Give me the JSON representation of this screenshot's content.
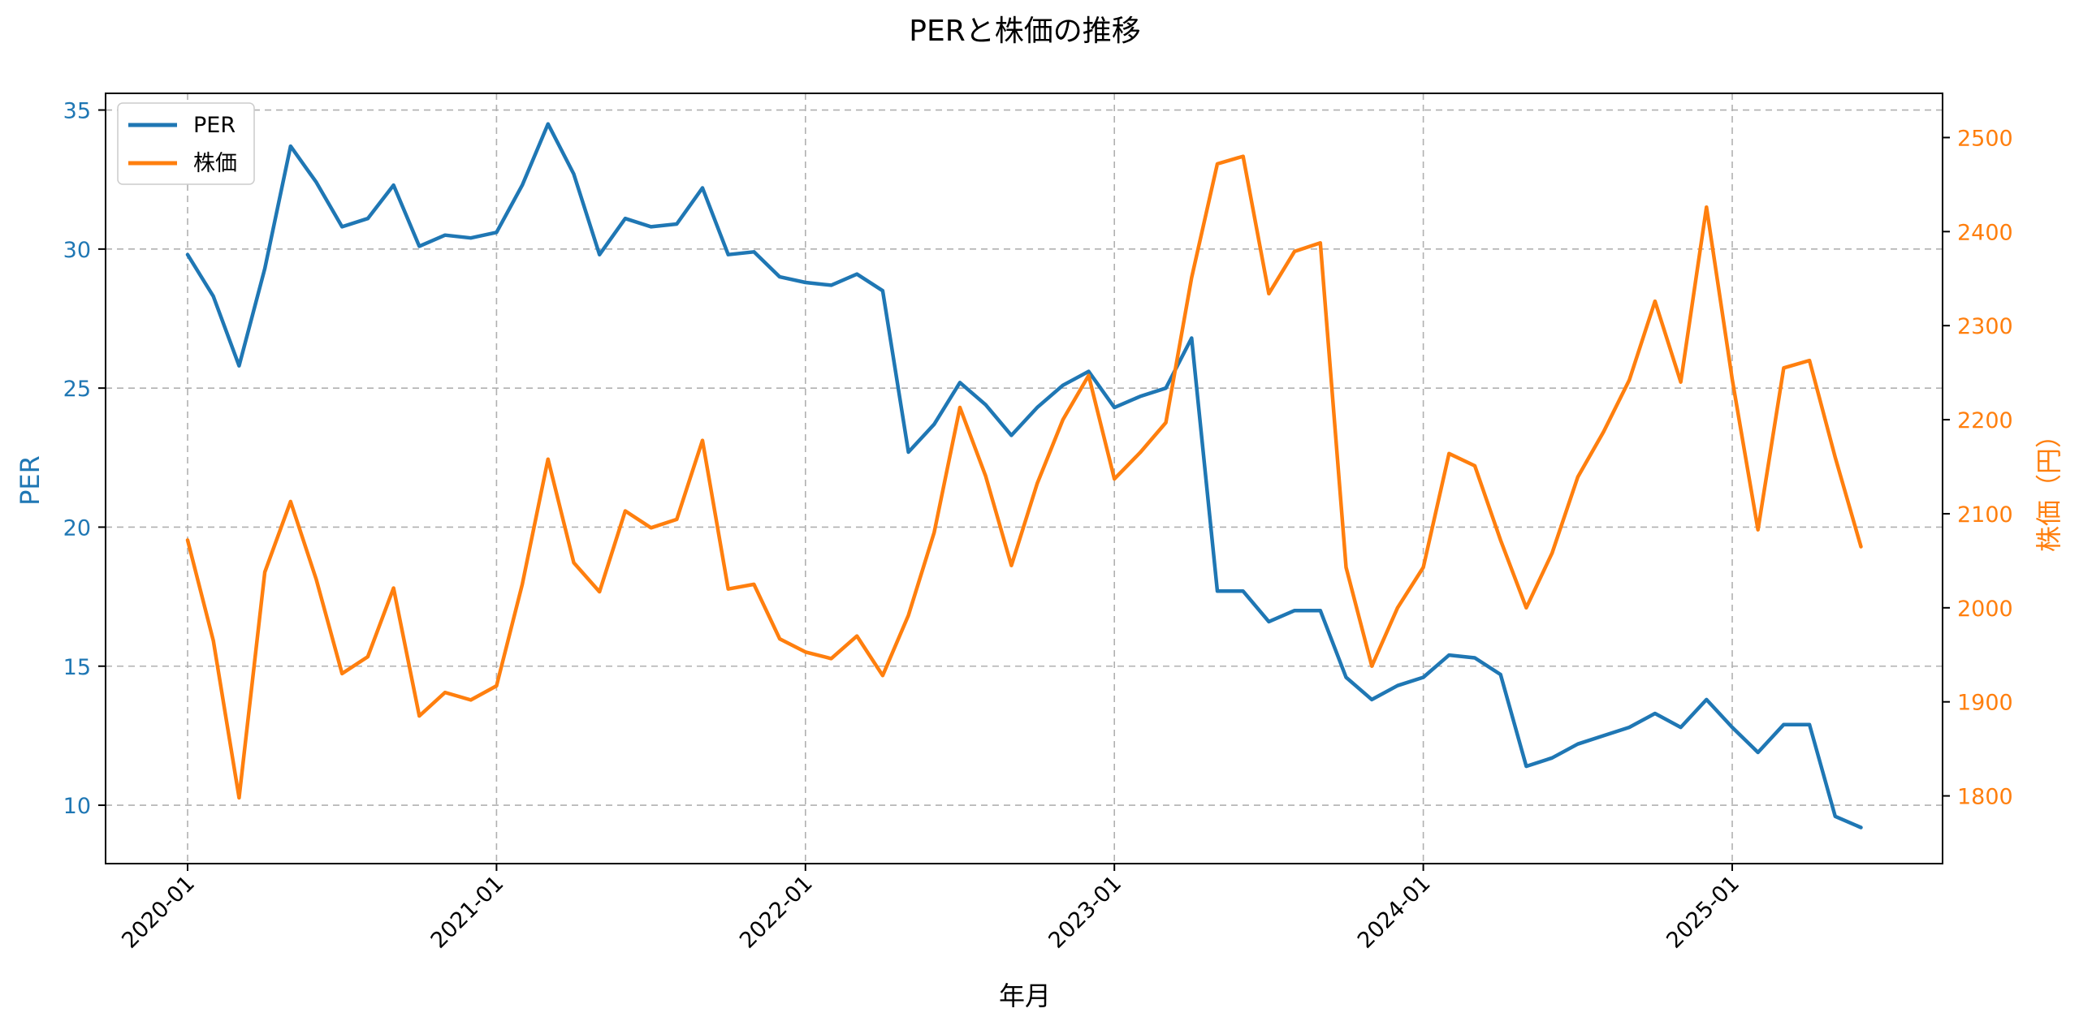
{
  "chart_data": {
    "type": "line",
    "title": "PERと株価の推移",
    "xlabel": "年月",
    "ylabel_left": "PER",
    "ylabel_right": "株価（円）",
    "x": [
      "2020-01",
      "2020-02",
      "2020-03",
      "2020-04",
      "2020-05",
      "2020-06",
      "2020-07",
      "2020-08",
      "2020-09",
      "2020-10",
      "2020-11",
      "2020-12",
      "2021-01",
      "2021-02",
      "2021-03",
      "2021-04",
      "2021-05",
      "2021-06",
      "2021-07",
      "2021-08",
      "2021-09",
      "2021-10",
      "2021-11",
      "2021-12",
      "2022-01",
      "2022-02",
      "2022-03",
      "2022-04",
      "2022-05",
      "2022-06",
      "2022-07",
      "2022-08",
      "2022-09",
      "2022-10",
      "2022-11",
      "2022-12",
      "2023-01",
      "2023-02",
      "2023-03",
      "2023-04",
      "2023-05",
      "2023-06",
      "2023-07",
      "2023-08",
      "2023-09",
      "2023-10",
      "2023-11",
      "2023-12",
      "2024-01",
      "2024-02",
      "2024-03",
      "2024-04",
      "2024-05",
      "2024-06",
      "2024-07",
      "2024-08",
      "2024-09",
      "2024-10",
      "2024-11",
      "2024-12",
      "2025-01",
      "2025-02",
      "2025-03",
      "2025-04",
      "2025-05",
      "2025-06"
    ],
    "xticks": [
      "2020-01",
      "2021-01",
      "2022-01",
      "2023-01",
      "2024-01",
      "2025-01"
    ],
    "series": [
      {
        "name": "PER",
        "axis": "left",
        "color": "#1f77b4",
        "values": [
          29.8,
          28.3,
          25.8,
          29.3,
          33.7,
          32.4,
          30.8,
          31.1,
          32.3,
          30.1,
          30.5,
          30.4,
          30.6,
          32.3,
          34.5,
          32.7,
          29.8,
          31.1,
          30.8,
          30.9,
          32.2,
          29.8,
          29.9,
          29.0,
          28.8,
          28.7,
          29.1,
          28.5,
          22.7,
          23.7,
          25.2,
          24.4,
          23.3,
          24.3,
          25.1,
          25.6,
          24.3,
          24.7,
          25.0,
          26.8,
          17.7,
          17.7,
          16.6,
          17.0,
          17.0,
          14.6,
          13.8,
          14.3,
          14.6,
          15.4,
          15.3,
          14.7,
          11.4,
          11.7,
          12.2,
          12.5,
          12.8,
          13.3,
          12.8,
          13.8,
          12.8,
          11.9,
          12.9,
          12.9,
          9.6,
          9.2
        ]
      },
      {
        "name": "株価",
        "axis": "right",
        "color": "#ff7f0e",
        "values": [
          2072,
          1965,
          1798,
          2038,
          2113,
          2030,
          1930,
          1948,
          2021,
          1885,
          1910,
          1902,
          1917,
          2025,
          2158,
          2048,
          2017,
          2103,
          2085,
          2094,
          2178,
          2020,
          2025,
          1967,
          1953,
          1946,
          1970,
          1928,
          1992,
          2080,
          2213,
          2140,
          2045,
          2132,
          2200,
          2247,
          2137,
          2165,
          2197,
          2351,
          2472,
          2480,
          2334,
          2379,
          2388,
          2043,
          1938,
          2000,
          2043,
          2164,
          2151,
          2072,
          2000,
          2058,
          2139,
          2187,
          2242,
          2326,
          2240,
          2426,
          2243,
          2083,
          2255,
          2263,
          2160,
          2065
        ]
      }
    ],
    "ylim_left": [
      7.9,
      35.6
    ],
    "ylim_right": [
      1728,
      2547
    ],
    "yticks_left": [
      10,
      15,
      20,
      25,
      30,
      35
    ],
    "yticks_right": [
      1800,
      1900,
      2000,
      2100,
      2200,
      2300,
      2400,
      2500
    ],
    "grid": true,
    "legend_position": "top-left"
  }
}
